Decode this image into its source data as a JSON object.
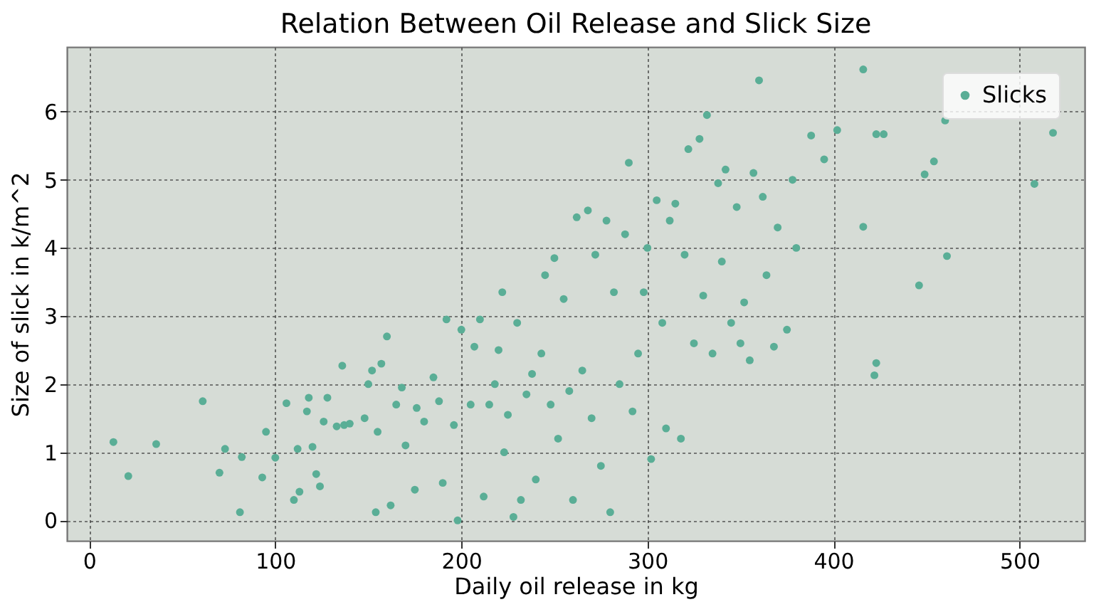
{
  "chart_data": {
    "type": "scatter",
    "title": "Relation Between Oil Release and Slick Size",
    "xlabel": "Daily oil release in kg",
    "ylabel": "Size of slick in k/m^2",
    "xlim": [
      -12,
      535
    ],
    "xticks": [
      0,
      100,
      200,
      300,
      400,
      500
    ],
    "ylim": [
      -0.3,
      6.95
    ],
    "yticks": [
      0,
      1,
      2,
      3,
      4,
      5,
      6
    ],
    "grid": true,
    "legend": "top right",
    "marker": "circle",
    "series": [
      {
        "name": "Slicks",
        "color": "#5aae96",
        "x": [
          13,
          21,
          36,
          61,
          70,
          73,
          81,
          82,
          93,
          95,
          100,
          106,
          110,
          112,
          113,
          117,
          118,
          120,
          122,
          124,
          126,
          128,
          133,
          136,
          137,
          140,
          148,
          150,
          152,
          154,
          155,
          157,
          160,
          162,
          165,
          168,
          170,
          175,
          176,
          180,
          185,
          188,
          190,
          192,
          196,
          198,
          200,
          205,
          207,
          210,
          212,
          215,
          218,
          220,
          222,
          223,
          225,
          228,
          230,
          232,
          235,
          238,
          240,
          243,
          245,
          248,
          250,
          252,
          255,
          258,
          260,
          262,
          265,
          268,
          270,
          272,
          275,
          278,
          280,
          282,
          285,
          288,
          290,
          292,
          295,
          298,
          300,
          302,
          305,
          308,
          310,
          312,
          315,
          318,
          320,
          322,
          325,
          328,
          330,
          332,
          335,
          338,
          340,
          342,
          345,
          348,
          350,
          352,
          355,
          357,
          360,
          362,
          364,
          368,
          370,
          375,
          378,
          380,
          388,
          395,
          402,
          416,
          416,
          422,
          423,
          423,
          427,
          446,
          449,
          454,
          460,
          461,
          508,
          518
        ],
        "values": [
          1.15,
          0.65,
          1.12,
          1.75,
          0.7,
          1.05,
          0.12,
          0.93,
          0.63,
          1.3,
          0.92,
          1.72,
          0.3,
          1.05,
          0.42,
          1.6,
          1.8,
          1.08,
          0.68,
          0.5,
          1.45,
          1.8,
          1.38,
          2.27,
          1.4,
          1.42,
          1.5,
          2.0,
          2.2,
          0.12,
          1.3,
          2.3,
          2.7,
          0.22,
          1.7,
          1.95,
          1.1,
          0.45,
          1.65,
          1.45,
          2.1,
          1.75,
          0.55,
          2.95,
          1.4,
          0.0,
          2.8,
          1.7,
          2.55,
          2.95,
          0.35,
          1.7,
          2.0,
          2.5,
          3.35,
          1.0,
          1.55,
          0.05,
          2.9,
          0.3,
          1.85,
          2.15,
          0.6,
          2.45,
          3.6,
          1.7,
          3.85,
          1.2,
          3.25,
          1.9,
          0.3,
          4.45,
          2.2,
          4.55,
          1.5,
          3.9,
          0.8,
          4.4,
          0.12,
          3.35,
          2.0,
          4.2,
          5.25,
          1.6,
          2.45,
          3.35,
          4.0,
          0.9,
          4.7,
          2.9,
          1.35,
          4.4,
          4.65,
          1.2,
          3.9,
          5.45,
          2.6,
          5.6,
          3.3,
          5.95,
          2.45,
          4.95,
          3.8,
          5.15,
          2.9,
          4.6,
          2.6,
          3.2,
          2.35,
          5.1,
          6.46,
          4.75,
          3.6,
          2.55,
          4.3,
          2.8,
          5.0,
          4.0,
          5.65,
          5.3,
          5.73,
          6.62,
          4.31,
          2.13,
          2.31,
          5.67,
          5.67,
          3.45,
          5.08,
          5.27,
          5.87,
          3.88,
          4.94,
          5.69
        ]
      }
    ]
  }
}
